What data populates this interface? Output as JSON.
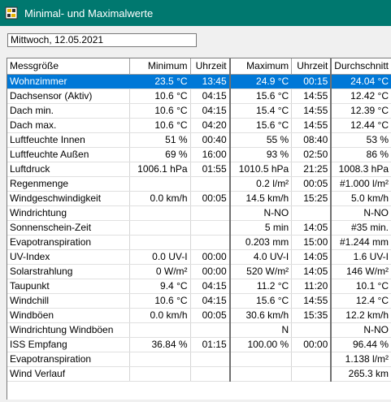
{
  "window": {
    "title": "Minimal- und Maximalwerte",
    "icon": "weather-station-icon"
  },
  "date_field": {
    "value": "Mittwoch, 12.05.2021"
  },
  "table": {
    "headers": [
      "Messgröße",
      "Minimum",
      "Uhrzeit",
      "Maximum",
      "Uhrzeit",
      "Durchschnitt"
    ],
    "selected_row": 0,
    "rows": [
      [
        "Wohnzimmer",
        "23.5 °C",
        "13:45",
        "24.9 °C",
        "00:15",
        "24.04 °C"
      ],
      [
        "Dachsensor (Aktiv)",
        "10.6 °C",
        "04:15",
        "15.6 °C",
        "14:55",
        "12.42 °C"
      ],
      [
        "Dach min.",
        "10.6 °C",
        "04:15",
        "15.4 °C",
        "14:55",
        "12.39 °C"
      ],
      [
        "Dach max.",
        "10.6 °C",
        "04:20",
        "15.6 °C",
        "14:55",
        "12.44 °C"
      ],
      [
        "Luftfeuchte Innen",
        "51 %",
        "00:40",
        "55 %",
        "08:40",
        "53 %"
      ],
      [
        "Luftfeuchte Außen",
        "69 %",
        "16:00",
        "93 %",
        "02:50",
        "86 %"
      ],
      [
        "Luftdruck",
        "1006.1 hPa",
        "01:55",
        "1010.5 hPa",
        "21:25",
        "1008.3 hPa"
      ],
      [
        "Regenmenge",
        "",
        "",
        "0.2 l/m²",
        "00:05",
        "#1.000 l/m²"
      ],
      [
        "Windgeschwindigkeit",
        "0.0 km/h",
        "00:05",
        "14.5 km/h",
        "15:25",
        "5.0 km/h"
      ],
      [
        "Windrichtung",
        "",
        "",
        "N-NO",
        "",
        "N-NO"
      ],
      [
        "Sonnenschein-Zeit",
        "",
        "",
        "5 min",
        "14:05",
        "#35 min."
      ],
      [
        "Evapotranspiration",
        "",
        "",
        "0.203 mm",
        "15:00",
        "#1.244 mm"
      ],
      [
        "UV-Index",
        "0.0 UV-I",
        "00:00",
        "4.0 UV-I",
        "14:05",
        "1.6 UV-I"
      ],
      [
        "Solarstrahlung",
        "0 W/m²",
        "00:00",
        "520 W/m²",
        "14:05",
        "146 W/m²"
      ],
      [
        "Taupunkt",
        "9.4 °C",
        "04:15",
        "11.2 °C",
        "11:20",
        "10.1 °C"
      ],
      [
        "Windchill",
        "10.6 °C",
        "04:15",
        "15.6 °C",
        "14:55",
        "12.4 °C"
      ],
      [
        "Windböen",
        "0.0 km/h",
        "00:05",
        "30.6 km/h",
        "15:35",
        "12.2 km/h"
      ],
      [
        "Windrichtung Windböen",
        "",
        "",
        "N",
        "",
        "N-NO"
      ],
      [
        "ISS Empfang",
        "36.84 %",
        "01:15",
        "100.00 %",
        "00:00",
        "96.44 %"
      ],
      [
        "Evapotranspiration",
        "",
        "",
        "",
        "",
        "1.138 l/m²"
      ],
      [
        "Wind Verlauf",
        "",
        "",
        "",
        "",
        "265.3 km"
      ]
    ]
  }
}
